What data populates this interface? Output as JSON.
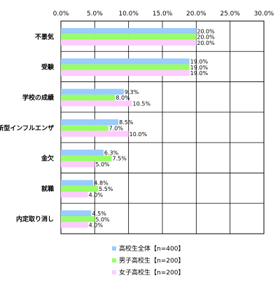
{
  "chart_data": {
    "type": "bar",
    "orientation": "horizontal",
    "categories": [
      "不景気",
      "受験",
      "学校の成績",
      "新型インフルエンザ",
      "金欠",
      "就職",
      "内定取り消し"
    ],
    "series": [
      {
        "name": "高校生全体【n=400】",
        "values": [
          20.0,
          19.0,
          9.3,
          8.5,
          6.3,
          4.8,
          4.5
        ],
        "color": "#99ccff"
      },
      {
        "name": "男子高校生【n=200】",
        "values": [
          20.0,
          19.0,
          8.0,
          7.0,
          7.5,
          5.5,
          5.0
        ],
        "color": "#99ff66"
      },
      {
        "name": "女子高校生【n=200】",
        "values": [
          20.0,
          19.0,
          10.5,
          10.0,
          5.0,
          4.0,
          4.0
        ],
        "color": "#ffccff"
      }
    ],
    "value_labels": [
      [
        "20.0%",
        "20.0%",
        "20.0%"
      ],
      [
        "19.0%",
        "19.0%",
        "19.0%"
      ],
      [
        "9.3%",
        "8.0%",
        "10.5%"
      ],
      [
        "8.5%",
        "7.0%",
        "10.0%"
      ],
      [
        "6.3%",
        "7.5%",
        "5.0%"
      ],
      [
        "4.8%",
        "5.5%",
        "4.0%"
      ],
      [
        "4.5%",
        "5.0%",
        "4.0%"
      ]
    ],
    "xticks": [
      "0.0%",
      "5.0%",
      "10.0%",
      "15.0%",
      "20.0%",
      "25.0%",
      "30.0%"
    ],
    "xlim": [
      0,
      30
    ],
    "grid": true,
    "legend_position": "bottom",
    "title": "",
    "xlabel": "",
    "ylabel": ""
  }
}
